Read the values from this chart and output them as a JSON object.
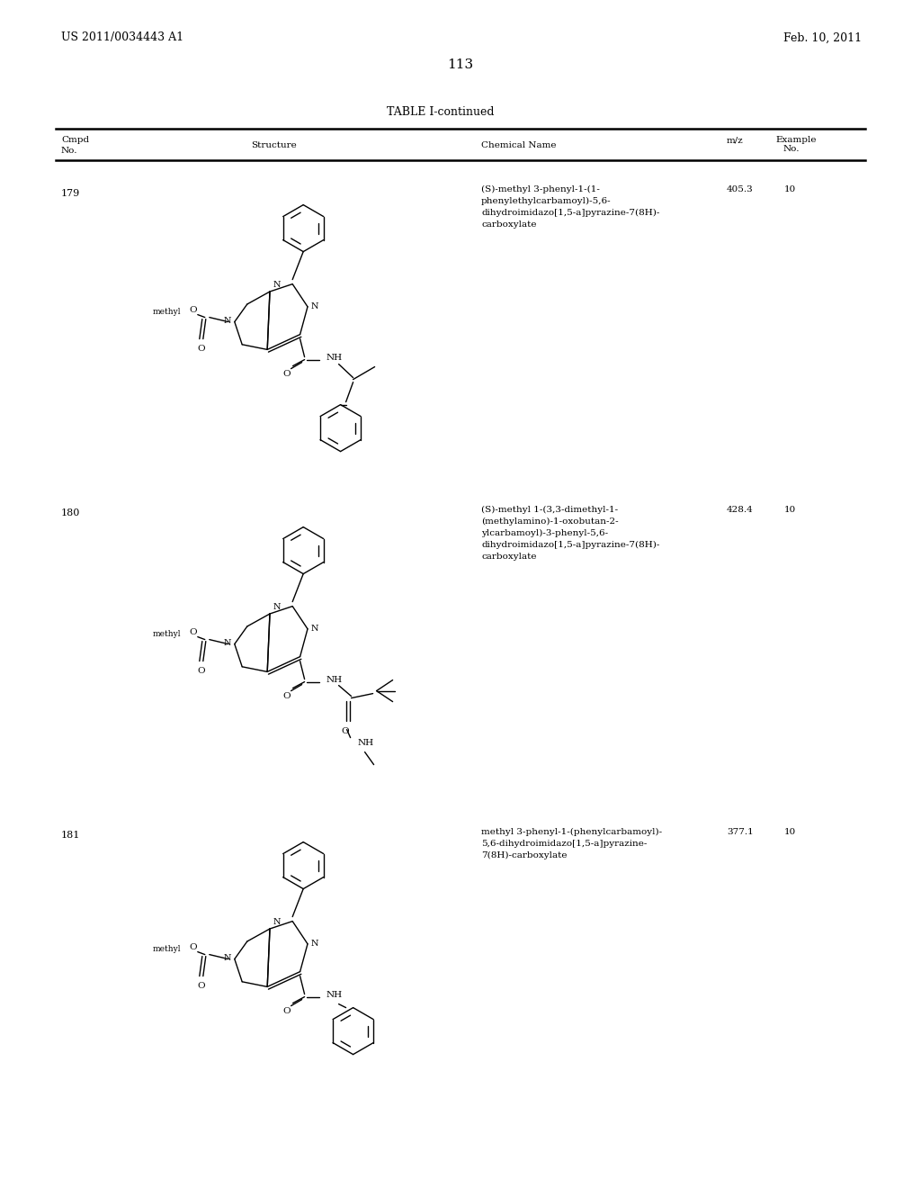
{
  "page_number": "113",
  "patent_number": "US 2011/0034443 A1",
  "patent_date": "Feb. 10, 2011",
  "table_title": "TABLE I-continued",
  "background_color": "#ffffff",
  "text_color": "#000000",
  "rows": [
    {
      "cmpd_no": "179",
      "chemical_name": "(S)-methyl 3-phenyl-1-(1-\nphenylethylcarbamoyl)-5,6-\ndihydroimidazo[1,5-a]pyrazine-7(8H)-\ncarboxylate",
      "mz": "405.3",
      "example_no": "10"
    },
    {
      "cmpd_no": "180",
      "chemical_name": "(S)-methyl 1-(3,3-dimethyl-1-\n(methylamino)-1-oxobutan-2-\nylcarbamoyl)-3-phenyl-5,6-\ndihydroimidazo[1,5-a]pyrazine-7(8H)-\ncarboxylate",
      "mz": "428.4",
      "example_no": "10"
    },
    {
      "cmpd_no": "181",
      "chemical_name": "methyl 3-phenyl-1-(phenylcarbamoyl)-\n5,6-dihydroimidazo[1,5-a]pyrazine-\n7(8H)-carboxylate",
      "mz": "377.1",
      "example_no": "10"
    }
  ]
}
